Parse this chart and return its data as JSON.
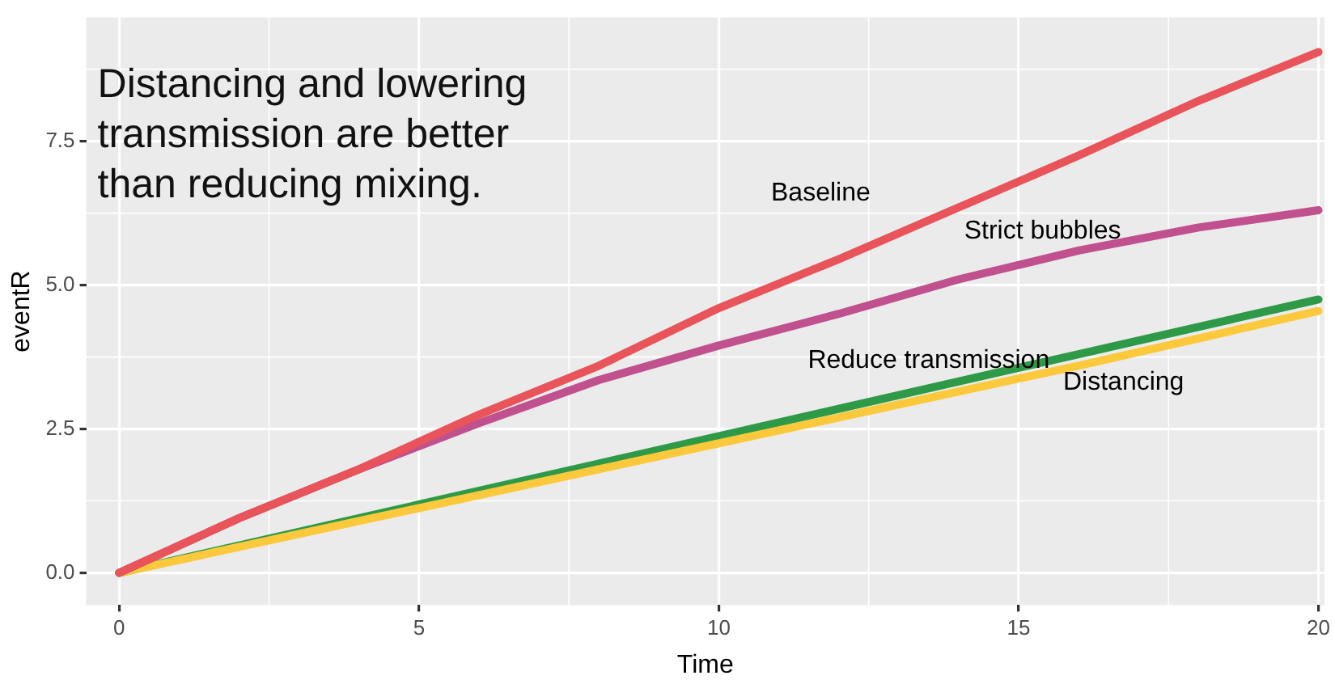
{
  "chart_data": {
    "type": "line",
    "title": "Distancing and lowering transmission are better than reducing mixing.",
    "xlabel": "Time",
    "ylabel": "eventR",
    "xlim": [
      -0.55,
      20.1
    ],
    "xticks": [
      0,
      5,
      10,
      15,
      20
    ],
    "ylim": [
      -0.56,
      9.65
    ],
    "yticks": [
      {
        "value": 0,
        "label": "0.0"
      },
      {
        "value": 2.5,
        "label": "2.5"
      },
      {
        "value": 5,
        "label": "5.0"
      },
      {
        "value": 7.5,
        "label": "7.5"
      }
    ],
    "grid": true,
    "legend": false,
    "marker": "none",
    "line_style": "solid",
    "series": [
      {
        "name": "Baseline",
        "color": "#e8545a",
        "x": [
          0,
          2,
          4,
          6,
          8,
          10,
          12,
          14,
          16,
          18,
          20
        ],
        "values": [
          0,
          0.95,
          1.8,
          2.75,
          3.6,
          4.6,
          5.45,
          6.35,
          7.25,
          8.2,
          9.05
        ]
      },
      {
        "name": "Strict bubbles",
        "color": "#c0508e",
        "x": [
          0,
          2,
          4,
          6,
          8,
          10,
          12,
          14,
          16,
          18,
          20
        ],
        "values": [
          0,
          0.95,
          1.8,
          2.6,
          3.35,
          3.95,
          4.5,
          5.1,
          5.6,
          6.0,
          6.3
        ]
      },
      {
        "name": "Distancing",
        "color": "#fcc93c",
        "x": [
          0,
          4,
          8,
          12,
          16,
          20
        ],
        "values": [
          0,
          0.9,
          1.8,
          2.7,
          3.6,
          4.55
        ]
      },
      {
        "name": "Reduce transmission",
        "color": "#2e9a48",
        "x": [
          0,
          4,
          8,
          12,
          16,
          20
        ],
        "values": [
          0,
          0.95,
          1.9,
          2.85,
          3.8,
          4.75
        ]
      }
    ]
  }
}
